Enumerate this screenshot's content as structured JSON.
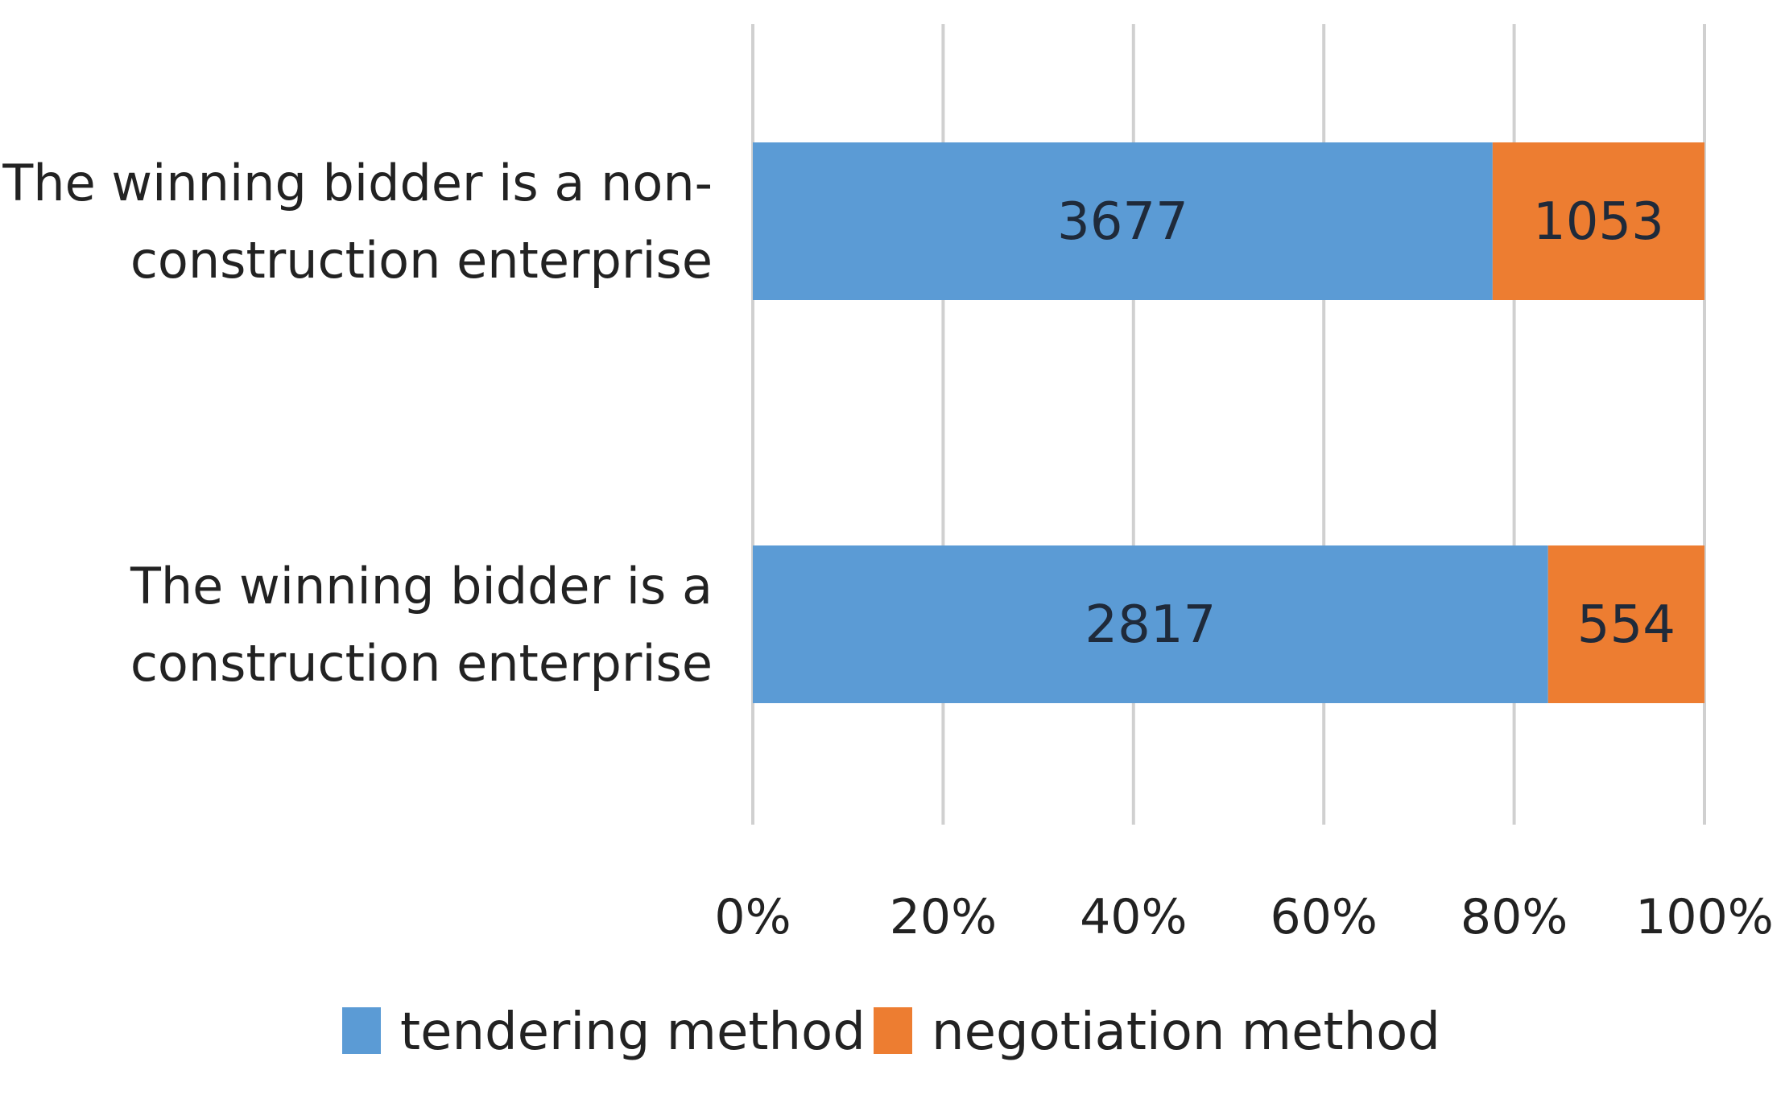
{
  "chart_data": {
    "type": "bar",
    "orientation": "horizontal",
    "stacked": "percent",
    "categories": [
      [
        "The winning bidder is a non-",
        "construction enterprise"
      ],
      [
        "The winning bidder is a",
        "construction enterprise"
      ]
    ],
    "series": [
      {
        "name": "tendering method",
        "values": [
          3677,
          2817
        ],
        "color": "#5b9bd5"
      },
      {
        "name": "negotiation method",
        "values": [
          1053,
          554
        ],
        "color": "#ed7d31"
      }
    ],
    "x_ticks": [
      "0%",
      "20%",
      "40%",
      "60%",
      "80%",
      "100%"
    ],
    "xlim": [
      0,
      100
    ],
    "grid": true,
    "legend_position": "bottom"
  }
}
